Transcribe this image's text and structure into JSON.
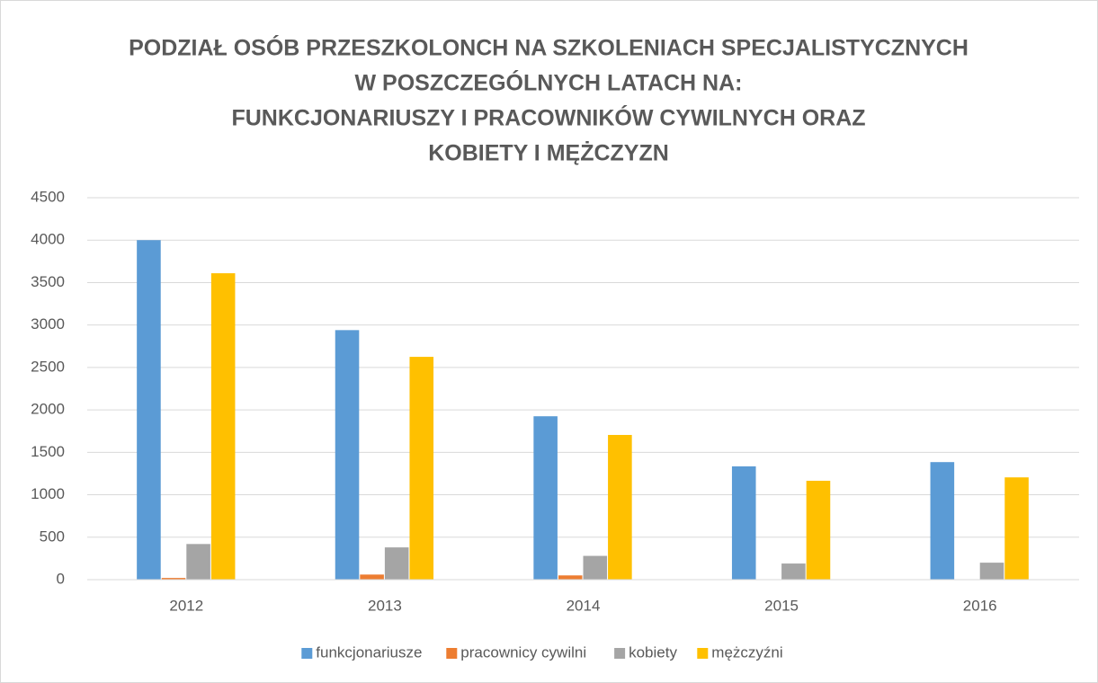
{
  "chart_data": {
    "type": "bar",
    "title": [
      "PODZIAŁ OSÓB PRZESZKOLONCH NA SZKOLENIACH SPECJALISTYCZNYCH",
      "W POSZCZEGÓLNYCH LATACH NA:",
      "FUNKCJONARIUSZY I PRACOWNIKÓW CYWILNYCH ORAZ",
      "KOBIETY I MĘŻCZYZN"
    ],
    "categories": [
      "2012",
      "2013",
      "2014",
      "2015",
      "2016"
    ],
    "series": [
      {
        "name": "funkcjonariusze",
        "color": "#5b9bd5",
        "values": [
          4000,
          2940,
          1925,
          1335,
          1385
        ]
      },
      {
        "name": "pracownicy cywilni",
        "color": "#ed7d31",
        "values": [
          20,
          60,
          50,
          0,
          0
        ]
      },
      {
        "name": "kobiety",
        "color": "#a5a5a5",
        "values": [
          420,
          380,
          280,
          190,
          200
        ]
      },
      {
        "name": "mężczyźni",
        "color": "#ffc000",
        "values": [
          3610,
          2625,
          1705,
          1165,
          1205
        ]
      }
    ],
    "ylim": [
      0,
      4500
    ],
    "yticks": [
      0,
      500,
      1000,
      1500,
      2000,
      2500,
      3000,
      3500,
      4000,
      4500
    ],
    "grid": true,
    "legend": "bottom"
  }
}
